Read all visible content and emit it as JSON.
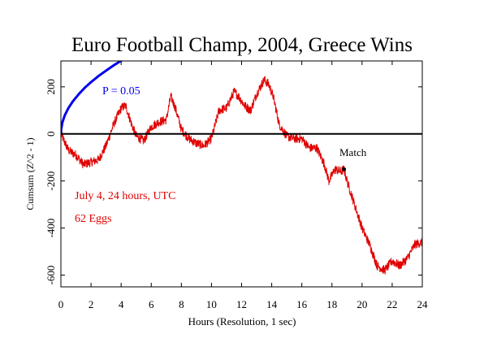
{
  "chart_data": {
    "type": "line",
    "title": "Euro Football Champ, 2004, Greece Wins",
    "xlabel": "Hours (Resolution, 1 sec)",
    "ylabel": "Cumsum (Z^2 - 1)",
    "xlim": [
      0,
      24
    ],
    "ylim": [
      -650,
      310
    ],
    "x_ticks": [
      0,
      2,
      4,
      6,
      8,
      10,
      12,
      14,
      16,
      18,
      20,
      22,
      24
    ],
    "x_tick_labels": [
      "0",
      "2",
      "4",
      "6",
      "8",
      "10",
      "12",
      "14",
      "16",
      "18",
      "20",
      "22",
      "24"
    ],
    "y_ticks": [
      -600,
      -400,
      -200,
      0,
      200
    ],
    "y_tick_labels": [
      "-600",
      "-400",
      "-200",
      "0",
      "200"
    ],
    "grid": false,
    "annotations": {
      "p_label": "P = 0.05",
      "match_label": "Match",
      "info_line1": "July 4, 24 hours, UTC",
      "info_line2": "62 Eggs"
    },
    "match_point": {
      "x": 18.8,
      "y": -150
    },
    "series": [
      {
        "color": "#e00000",
        "x": [
          0,
          0.5,
          1.0,
          1.5,
          2.0,
          2.5,
          3.0,
          3.5,
          4.0,
          4.3,
          4.7,
          5.0,
          5.5,
          6.0,
          6.5,
          7.0,
          7.3,
          7.6,
          8.0,
          8.5,
          9.0,
          9.5,
          10.0,
          10.5,
          11.0,
          11.5,
          11.8,
          12.2,
          12.6,
          13.0,
          13.5,
          13.8,
          14.1,
          14.5,
          15.0,
          15.5,
          16.0,
          16.5,
          17.0,
          17.5,
          17.8,
          18.2,
          18.6,
          18.8,
          19.0,
          19.5,
          20.0,
          20.5,
          21.0,
          21.5,
          22.0,
          22.5,
          23.0,
          23.5,
          24.0
        ],
        "y": [
          0,
          -70,
          -90,
          -130,
          -120,
          -110,
          -50,
          40,
          110,
          120,
          40,
          -10,
          -30,
          30,
          50,
          60,
          160,
          110,
          20,
          -20,
          -40,
          -50,
          -20,
          100,
          110,
          180,
          160,
          120,
          100,
          170,
          230,
          210,
          160,
          40,
          -10,
          -20,
          -20,
          -60,
          -60,
          -130,
          -200,
          -150,
          -160,
          -150,
          -200,
          -300,
          -400,
          -470,
          -560,
          -580,
          -540,
          -560,
          -530,
          -470,
          -460
        ]
      },
      {
        "name": "P = 0.05",
        "color": "#0000ee",
        "x": [
          0,
          0.02,
          0.1,
          0.25,
          0.5,
          0.8,
          1.2,
          1.6,
          2.0,
          2.5,
          3.0,
          3.5,
          4.0,
          4.5,
          5.0
        ],
        "y": [
          0,
          21,
          49,
          78,
          110,
          139,
          170,
          197,
          220,
          246,
          269,
          291,
          311,
          330,
          348
        ]
      }
    ]
  }
}
